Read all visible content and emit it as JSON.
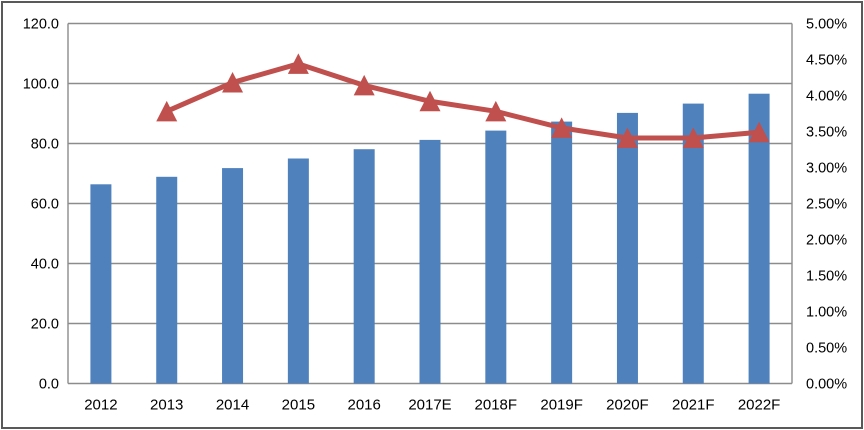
{
  "chart_data": {
    "type": "combo",
    "title": "",
    "xlabel": "",
    "ylabel": "",
    "legend": "none",
    "grid": true,
    "categories": [
      "2012",
      "2013",
      "2014",
      "2015",
      "2016",
      "2017E",
      "2018F",
      "2019F",
      "2020F",
      "2021F",
      "2022F"
    ],
    "series": [
      {
        "id": "bar-series",
        "type": "bar",
        "axis": "left",
        "color": "#4f81bd",
        "values": [
          66.4,
          68.9,
          71.8,
          75.0,
          78.1,
          81.2,
          84.3,
          87.3,
          90.2,
          93.3,
          96.6
        ]
      },
      {
        "id": "line-series",
        "type": "line",
        "axis": "right",
        "color": "#c0504d",
        "marker": "triangle",
        "values": [
          null,
          3.78,
          4.18,
          4.44,
          4.14,
          3.92,
          3.78,
          3.55,
          3.41,
          3.41,
          3.49
        ]
      }
    ],
    "left_axis": {
      "min": 0,
      "max": 120,
      "step": 20,
      "tick_labels": [
        "120.0",
        "100.0",
        "80.0",
        "60.0",
        "40.0",
        "20.0",
        "0.0"
      ]
    },
    "right_axis": {
      "min": 0,
      "max": 5,
      "step": 0.5,
      "tick_labels": [
        "5.00%",
        "4.50%",
        "4.00%",
        "3.50%",
        "3.00%",
        "2.50%",
        "2.00%",
        "1.50%",
        "1.00%",
        "0.50%",
        "0.00%"
      ]
    }
  },
  "colors": {
    "bar": "#4f81bd",
    "line": "#c0504d",
    "gridline": "#8c8c8c",
    "axis_line": "#8c8c8c",
    "text": "#000000",
    "background": "#ffffff",
    "frame_border": "#595959"
  }
}
